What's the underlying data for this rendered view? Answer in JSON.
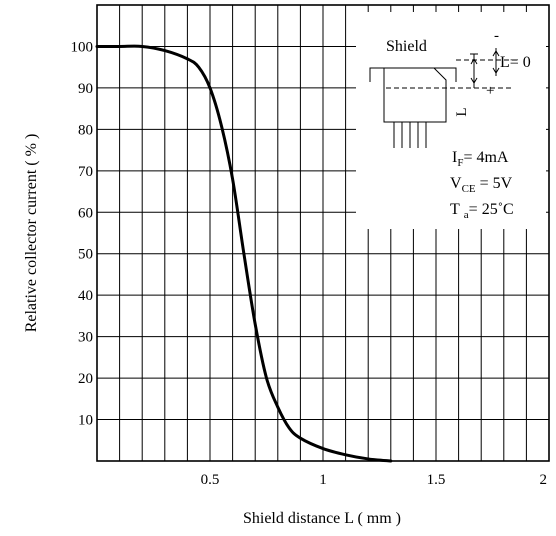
{
  "chart_data": {
    "type": "line",
    "xlabel": "Shield distance L ( mm )",
    "ylabel": "Relative collector current ( % )",
    "xlim": [
      0,
      2.0
    ],
    "ylim": [
      0,
      110
    ],
    "x_ticks": [
      {
        "value": 0.5,
        "label": "0.5"
      },
      {
        "value": 1.0,
        "label": "1"
      },
      {
        "value": 1.5,
        "label": "1.5"
      },
      {
        "value": 2.0,
        "label": "2"
      }
    ],
    "y_ticks": [
      {
        "value": 10,
        "label": "10"
      },
      {
        "value": 20,
        "label": "20"
      },
      {
        "value": 30,
        "label": "30"
      },
      {
        "value": 40,
        "label": "40"
      },
      {
        "value": 50,
        "label": "50"
      },
      {
        "value": 60,
        "label": "60"
      },
      {
        "value": 70,
        "label": "70"
      },
      {
        "value": 80,
        "label": "80"
      },
      {
        "value": 90,
        "label": "90"
      },
      {
        "value": 100,
        "label": "100"
      }
    ],
    "grid": true,
    "series": [
      {
        "color": "#000000",
        "x": [
          0,
          0.1,
          0.2,
          0.3,
          0.4,
          0.45,
          0.5,
          0.55,
          0.6,
          0.65,
          0.7,
          0.75,
          0.8,
          0.85,
          0.9,
          1.0,
          1.1,
          1.2,
          1.3
        ],
        "y": [
          100,
          100,
          100,
          99,
          97,
          95,
          90,
          81,
          68,
          50,
          33,
          20,
          13,
          8,
          5.5,
          3,
          1.5,
          0.5,
          0
        ]
      }
    ],
    "inset": {
      "shield_label": "Shield",
      "dim_label": "L",
      "zero_label": "L=  0",
      "plus_label": "+",
      "minus_label": "-"
    },
    "conditions": {
      "if": {
        "main": "I",
        "sub": "F",
        "rest": "=  4mA"
      },
      "vce": {
        "main": "V",
        "sub": "CE",
        "rest": " = 5V"
      },
      "ta": {
        "main": "T",
        "sub": "a",
        "rest": "=  25˚C"
      }
    }
  }
}
